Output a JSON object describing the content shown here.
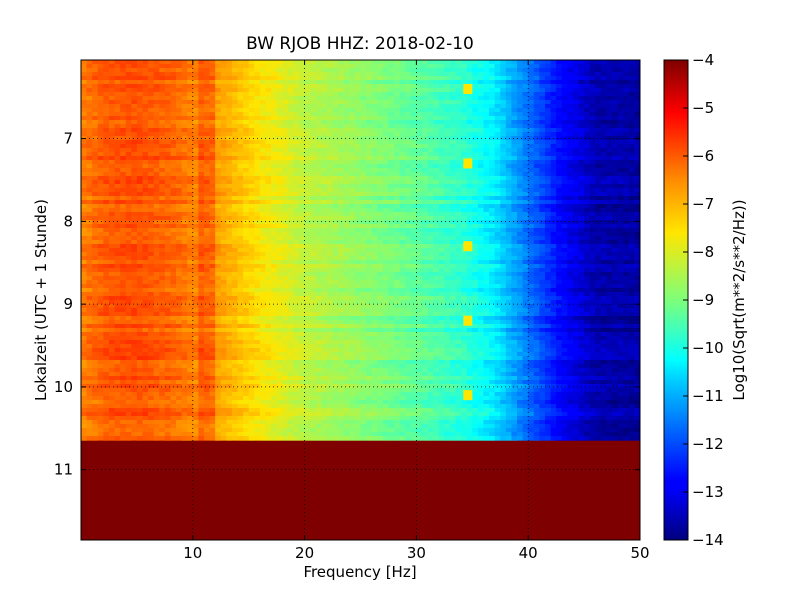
{
  "chart_data": {
    "type": "heatmap",
    "title": "BW RJOB HHZ: 2018-02-10",
    "xlabel": "Frequency [Hz]",
    "ylabel": "Lokalzeit (UTC + 1 Stunde)",
    "xlim": [
      0,
      50
    ],
    "ylim": [
      11.85,
      6.05
    ],
    "y_inverted": true,
    "xticks": [
      10,
      20,
      30,
      40,
      50
    ],
    "yticks": [
      7,
      8,
      9,
      10,
      11
    ],
    "grid": true,
    "colormap": "jet",
    "colorbar": {
      "label": "Log10(Sqrt(m**2/s**2/Hz))",
      "range": [
        -14,
        -4
      ],
      "ticks": [
        -4,
        -5,
        -6,
        -7,
        -8,
        -9,
        -10,
        -11,
        -12,
        -13,
        -14
      ]
    },
    "data_end_time": 10.65,
    "fill_value_after_data_end": -4,
    "spectrum_profile": {
      "frequency_hz": [
        0,
        2,
        5,
        8,
        12,
        16,
        20,
        25,
        30,
        34,
        37,
        40,
        43,
        46,
        50
      ],
      "log10_amplitude": [
        -6.4,
        -6.0,
        -5.9,
        -6.1,
        -6.7,
        -7.6,
        -8.3,
        -8.8,
        -9.3,
        -9.8,
        -10.4,
        -11.6,
        -12.8,
        -13.6,
        -13.7
      ]
    },
    "spectral_lines_hz": [
      10.3,
      10.9,
      11.4
    ],
    "tones_hz": [
      34.5
    ],
    "tone_times": [
      6.4,
      7.3,
      8.3,
      9.2,
      10.1
    ]
  }
}
